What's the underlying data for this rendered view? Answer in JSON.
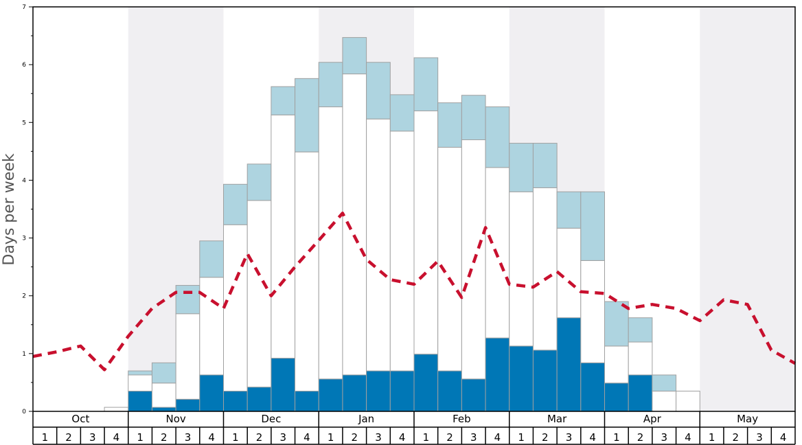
{
  "chart_data": {
    "type": "bar",
    "ylabel": "Days per week",
    "ylim": [
      0,
      7
    ],
    "y_ticks": [
      "0",
      "1",
      "2",
      "3",
      "4",
      "5",
      "6",
      "7"
    ],
    "months": [
      "Oct",
      "Nov",
      "Dec",
      "Jan",
      "Feb",
      "Mar",
      "Apr",
      "May"
    ],
    "weeks": [
      "1",
      "2",
      "3",
      "4"
    ],
    "shaded_months": [
      "Nov",
      "Jan",
      "Mar",
      "May"
    ],
    "colors": {
      "dark_segment": "#0077b6",
      "white_segment": "#ffffff",
      "light_segment": "#aed4e0",
      "bar_stroke": "#a0a0a0",
      "dashed_line": "#c8102e",
      "shade_band": "#f0eff2"
    },
    "series": [
      {
        "values": [
          0,
          0,
          0,
          0,
          0.35,
          0.07,
          0.21,
          0.63,
          0.35,
          0.42,
          0.92,
          0.35,
          0.56,
          0.63,
          0.7,
          0.7,
          0.99,
          0.7,
          0.56,
          1.27,
          1.13,
          1.06,
          1.62,
          0.84,
          0.49,
          0.63,
          0,
          0,
          0,
          0,
          0,
          0
        ]
      },
      {
        "values": [
          0,
          0,
          0,
          0.07,
          0.28,
          0.42,
          1.48,
          1.69,
          2.88,
          3.23,
          4.21,
          4.14,
          4.71,
          5.21,
          4.36,
          4.15,
          4.21,
          3.87,
          4.14,
          2.95,
          2.67,
          2.81,
          1.55,
          1.77,
          0.64,
          0.57,
          0.35,
          0.35,
          0,
          0,
          0,
          0
        ]
      },
      {
        "values": [
          0,
          0,
          0,
          0,
          0.07,
          0.35,
          0.49,
          0.63,
          0.7,
          0.63,
          0.49,
          1.27,
          0.77,
          0.63,
          0.98,
          0.63,
          0.92,
          0.77,
          0.77,
          1.05,
          0.84,
          0.77,
          0.63,
          1.19,
          0.77,
          0.42,
          0.28,
          0,
          0,
          0,
          0,
          0
        ]
      },
      {
        "style": "dashed",
        "values": [
          0.95,
          1.03,
          1.13,
          0.72,
          1.3,
          1.78,
          2.06,
          2.06,
          1.78,
          2.73,
          2.0,
          2.5,
          2.96,
          3.43,
          2.63,
          2.28,
          2.2,
          2.6,
          1.97,
          3.18,
          2.2,
          2.15,
          2.42,
          2.07,
          2.04,
          1.78,
          1.85,
          1.78,
          1.57,
          1.93,
          1.85,
          1.06,
          0.83
        ]
      }
    ]
  }
}
